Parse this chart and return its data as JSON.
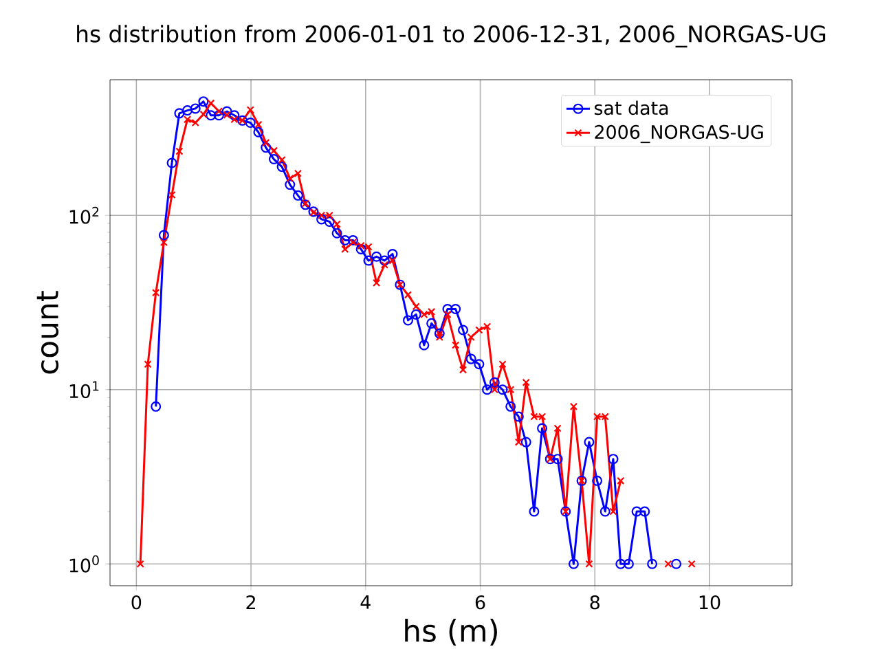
{
  "chart_data": {
    "type": "line",
    "title": "hs distribution from 2006-01-01 to 2006-12-31, 2006_NORGAS-UG",
    "xlabel": "hs (m)",
    "ylabel": "count",
    "x": [
      0.07,
      0.2,
      0.34,
      0.48,
      0.62,
      0.75,
      0.89,
      1.03,
      1.17,
      1.3,
      1.44,
      1.58,
      1.71,
      1.85,
      1.99,
      2.13,
      2.26,
      2.4,
      2.54,
      2.68,
      2.82,
      2.95,
      3.09,
      3.23,
      3.37,
      3.5,
      3.64,
      3.78,
      3.92,
      4.05,
      4.19,
      4.33,
      4.47,
      4.6,
      4.74,
      4.88,
      5.02,
      5.15,
      5.29,
      5.43,
      5.57,
      5.7,
      5.84,
      5.98,
      6.12,
      6.25,
      6.39,
      6.53,
      6.67,
      6.8,
      6.94,
      7.08,
      7.22,
      7.35,
      7.49,
      7.63,
      7.77,
      7.9,
      8.04,
      8.18,
      8.32,
      8.45,
      8.59,
      8.73,
      8.87,
      9.0,
      9.14,
      9.28,
      9.42,
      9.55,
      9.69
    ],
    "series": [
      {
        "name": "sat data",
        "color": "#0000ff",
        "marker": "circle",
        "values": [
          null,
          null,
          8,
          77,
          200,
          385,
          400,
          410,
          450,
          375,
          375,
          395,
          375,
          350,
          340,
          300,
          245,
          210,
          190,
          150,
          130,
          115,
          105,
          95,
          92,
          79,
          72,
          72,
          64,
          55,
          58,
          55,
          60,
          40,
          25,
          27,
          18,
          24,
          21,
          29,
          29,
          22,
          15,
          14,
          10,
          11,
          10,
          8,
          7,
          5,
          2,
          6,
          4,
          4,
          2,
          1,
          3,
          5,
          3,
          2,
          4,
          1,
          1,
          2,
          2,
          1,
          null,
          null,
          1,
          null,
          null
        ]
      },
      {
        "name": "2006_NORGAS-UG",
        "color": "#ff0000",
        "marker": "cross",
        "values": [
          1,
          14,
          36,
          70,
          131,
          233,
          355,
          340,
          380,
          440,
          396,
          377,
          355,
          350,
          403,
          332,
          261,
          235,
          208,
          163,
          174,
          117,
          104,
          100,
          100,
          89,
          64,
          70,
          67,
          66,
          41,
          52,
          55,
          40,
          35,
          30,
          27,
          28,
          20,
          27,
          18,
          13,
          20,
          22,
          23,
          10,
          14,
          10,
          5,
          11,
          7,
          7,
          4,
          6,
          2,
          8,
          3,
          1,
          7,
          7,
          2,
          3,
          null,
          null,
          null,
          null,
          null,
          1,
          null,
          null,
          1
        ]
      }
    ],
    "log": "y",
    "xlim": [
      -0.46,
      11.44
    ],
    "ylim": [
      0.75,
      600
    ],
    "xticks": [
      0,
      2,
      4,
      6,
      8,
      10
    ],
    "yticks": [
      {
        "value": 1,
        "label": "10$^{0}$"
      },
      {
        "value": 10,
        "label": "10$^{1}$"
      },
      {
        "value": 100,
        "label": "10$^{2}$"
      }
    ],
    "grid": true,
    "legend": "top right",
    "line_style": "solid"
  }
}
